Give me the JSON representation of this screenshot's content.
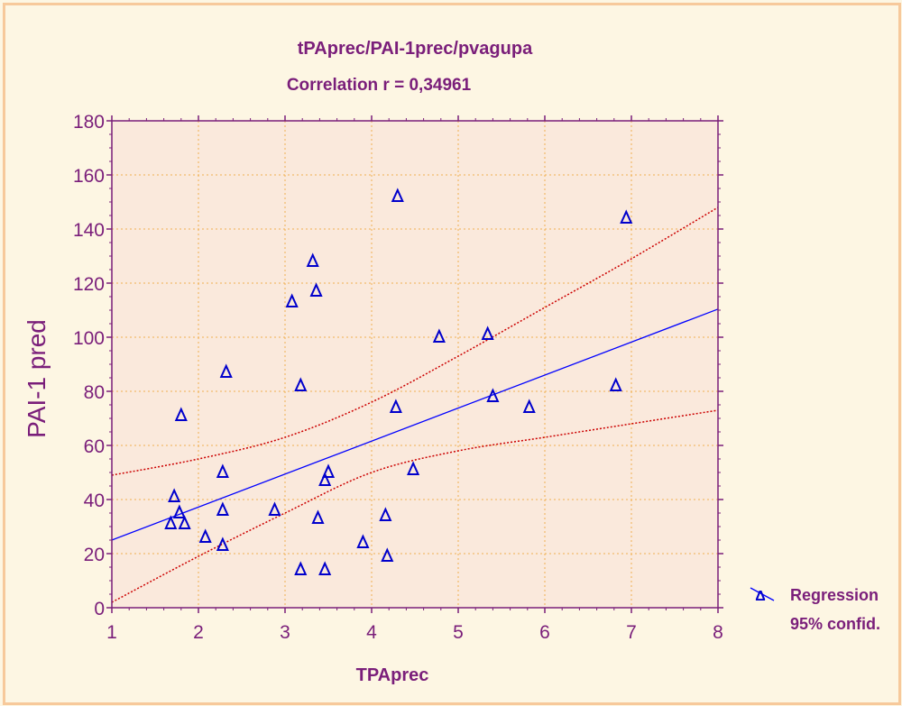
{
  "chart_data": {
    "type": "scatter",
    "title": "tPAprec/PAI-1prec/pvagupa",
    "subtitle": "Correlation r = 0,34961",
    "xlabel": "TPAprec",
    "ylabel": "PAI-1 pred",
    "xlim": [
      1,
      8
    ],
    "ylim": [
      0,
      180
    ],
    "xticks": [
      1,
      2,
      3,
      4,
      5,
      6,
      7,
      8
    ],
    "yticks": [
      0,
      20,
      40,
      60,
      80,
      100,
      120,
      140,
      160,
      180
    ],
    "ytick_labels": [
      "0",
      "20",
      "40",
      "60",
      "80",
      "100",
      "120",
      "140",
      "160",
      "180"
    ],
    "grid": true,
    "legend_position": "bottom-right outside",
    "legend": [
      "Regression",
      "95% confid."
    ],
    "points": [
      {
        "x": 1.68,
        "y": 31
      },
      {
        "x": 1.72,
        "y": 41
      },
      {
        "x": 1.78,
        "y": 35
      },
      {
        "x": 1.8,
        "y": 71
      },
      {
        "x": 1.84,
        "y": 31
      },
      {
        "x": 2.08,
        "y": 26
      },
      {
        "x": 2.28,
        "y": 50
      },
      {
        "x": 2.28,
        "y": 36
      },
      {
        "x": 2.28,
        "y": 23
      },
      {
        "x": 2.32,
        "y": 87
      },
      {
        "x": 2.88,
        "y": 36
      },
      {
        "x": 3.08,
        "y": 113
      },
      {
        "x": 3.18,
        "y": 82
      },
      {
        "x": 3.18,
        "y": 14
      },
      {
        "x": 3.32,
        "y": 128
      },
      {
        "x": 3.36,
        "y": 117
      },
      {
        "x": 3.38,
        "y": 33
      },
      {
        "x": 3.46,
        "y": 14
      },
      {
        "x": 3.46,
        "y": 47
      },
      {
        "x": 3.5,
        "y": 50
      },
      {
        "x": 3.9,
        "y": 24
      },
      {
        "x": 4.16,
        "y": 34
      },
      {
        "x": 4.18,
        "y": 19
      },
      {
        "x": 4.28,
        "y": 74
      },
      {
        "x": 4.3,
        "y": 152
      },
      {
        "x": 4.48,
        "y": 51
      },
      {
        "x": 4.78,
        "y": 100
      },
      {
        "x": 5.34,
        "y": 101
      },
      {
        "x": 5.4,
        "y": 78
      },
      {
        "x": 5.82,
        "y": 74
      },
      {
        "x": 6.82,
        "y": 82
      },
      {
        "x": 6.94,
        "y": 144
      }
    ],
    "regression": {
      "intercept": 12.8,
      "slope": 12.2
    },
    "ci_upper": [
      {
        "x": 1,
        "y": 49
      },
      {
        "x": 2,
        "y": 55
      },
      {
        "x": 3,
        "y": 63
      },
      {
        "x": 4,
        "y": 76
      },
      {
        "x": 5,
        "y": 93
      },
      {
        "x": 6,
        "y": 111
      },
      {
        "x": 7,
        "y": 129
      },
      {
        "x": 8,
        "y": 148
      }
    ],
    "ci_lower": [
      {
        "x": 1,
        "y": 2
      },
      {
        "x": 2,
        "y": 19
      },
      {
        "x": 3,
        "y": 35
      },
      {
        "x": 4,
        "y": 50
      },
      {
        "x": 5,
        "y": 58
      },
      {
        "x": 6,
        "y": 63
      },
      {
        "x": 7,
        "y": 68
      },
      {
        "x": 8,
        "y": 73
      }
    ],
    "colors": {
      "marker": "#0000cc",
      "regression": "#0000ff",
      "ci": "#cc0000",
      "grid": "#f0b050",
      "plot_bg": "#fae9dc",
      "text": "#7a1e7a"
    }
  }
}
